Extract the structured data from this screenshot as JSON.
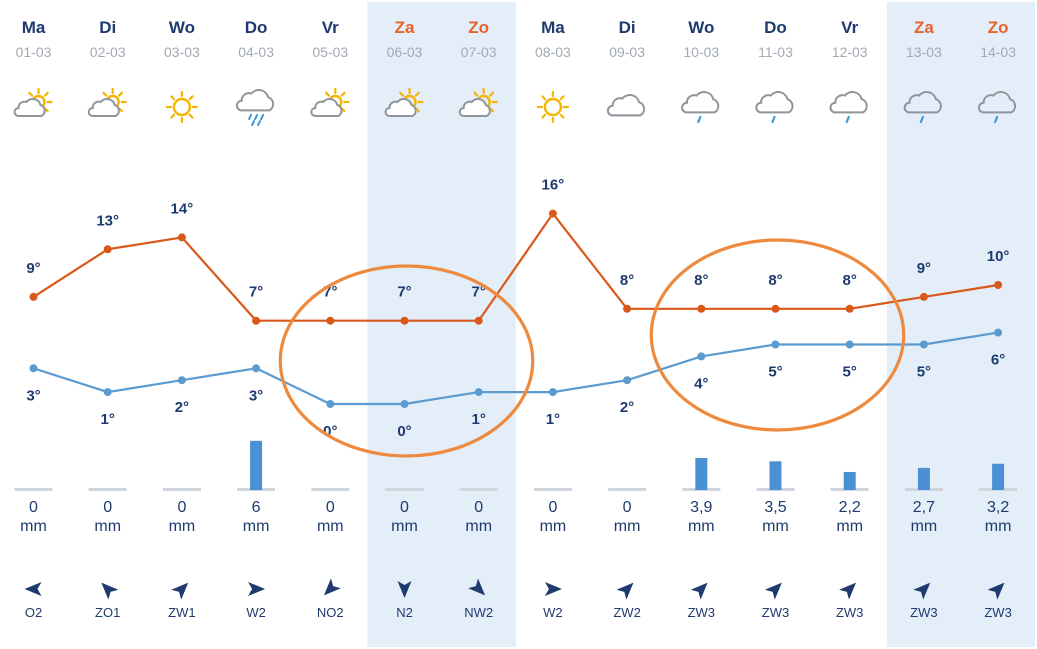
{
  "colors": {
    "weekday": "#1f3a6e",
    "weekend": "#e8622a",
    "weekend_band": "#e3eef9",
    "max_line": "#d9581a",
    "min_line": "#5b9bd0",
    "precip_bar": "#4a90d2",
    "precip_base": "#cfd5dc",
    "annotation": "#ee8a3e",
    "sun": "#f5b400",
    "cloud": "#8e959c",
    "rain": "#3a9ad9"
  },
  "chart_data": {
    "type": "line",
    "unit_temp": "°",
    "precip_unit": "mm",
    "days": [
      {
        "day": "Ma",
        "date": "01-03",
        "weekend": false,
        "icon": "partly-cloudy-icon",
        "max": 9,
        "min": 3,
        "precip": "0",
        "precip_value": 0,
        "wind_dir": "O",
        "wind": "O2",
        "wind_arrow": "arrow-west-icon"
      },
      {
        "day": "Di",
        "date": "02-03",
        "weekend": false,
        "icon": "partly-cloudy-icon",
        "max": 13,
        "min": 1,
        "precip": "0",
        "precip_value": 0,
        "wind_dir": "ZO",
        "wind": "ZO1",
        "wind_arrow": "arrow-northwest-icon"
      },
      {
        "day": "Wo",
        "date": "03-03",
        "weekend": false,
        "icon": "sun-icon",
        "max": 14,
        "min": 2,
        "precip": "0",
        "precip_value": 0,
        "wind_dir": "ZW",
        "wind": "ZW1",
        "wind_arrow": "arrow-northeast-icon"
      },
      {
        "day": "Do",
        "date": "04-03",
        "weekend": false,
        "icon": "rain-cloud-icon",
        "max": 7,
        "min": 3,
        "precip": "6",
        "precip_value": 6,
        "wind_dir": "W",
        "wind": "W2",
        "wind_arrow": "arrow-east-icon"
      },
      {
        "day": "Vr",
        "date": "05-03",
        "weekend": false,
        "icon": "partly-cloudy-icon",
        "max": 7,
        "min": 0,
        "precip": "0",
        "precip_value": 0,
        "wind_dir": "NO",
        "wind": "NO2",
        "wind_arrow": "arrow-southwest-icon"
      },
      {
        "day": "Za",
        "date": "06-03",
        "weekend": true,
        "icon": "partly-cloudy-icon",
        "max": 7,
        "min": 0,
        "precip": "0",
        "precip_value": 0,
        "wind_dir": "N",
        "wind": "N2",
        "wind_arrow": "arrow-south-icon"
      },
      {
        "day": "Zo",
        "date": "07-03",
        "weekend": true,
        "icon": "partly-cloudy-icon",
        "max": 7,
        "min": 1,
        "precip": "0",
        "precip_value": 0,
        "wind_dir": "NW",
        "wind": "NW2",
        "wind_arrow": "arrow-southeast-icon"
      },
      {
        "day": "Ma",
        "date": "08-03",
        "weekend": false,
        "icon": "sun-icon",
        "max": 16,
        "min": 1,
        "precip": "0",
        "precip_value": 0,
        "wind_dir": "W",
        "wind": "W2",
        "wind_arrow": "arrow-east-icon"
      },
      {
        "day": "Di",
        "date": "09-03",
        "weekend": false,
        "icon": "cloud-icon",
        "max": 8,
        "min": 2,
        "precip": "0",
        "precip_value": 0,
        "wind_dir": "ZW",
        "wind": "ZW2",
        "wind_arrow": "arrow-northeast-icon"
      },
      {
        "day": "Wo",
        "date": "10-03",
        "weekend": false,
        "icon": "drizzle-cloud-icon",
        "max": 8,
        "min": 4,
        "precip": "3,9",
        "precip_value": 3.9,
        "wind_dir": "ZW",
        "wind": "ZW3",
        "wind_arrow": "arrow-northeast-icon"
      },
      {
        "day": "Do",
        "date": "11-03",
        "weekend": false,
        "icon": "drizzle-cloud-icon",
        "max": 8,
        "min": 5,
        "precip": "3,5",
        "precip_value": 3.5,
        "wind_dir": "ZW",
        "wind": "ZW3",
        "wind_arrow": "arrow-northeast-icon"
      },
      {
        "day": "Vr",
        "date": "12-03",
        "weekend": false,
        "icon": "drizzle-cloud-icon",
        "max": 8,
        "min": 5,
        "precip": "2,2",
        "precip_value": 2.2,
        "wind_dir": "ZW",
        "wind": "ZW3",
        "wind_arrow": "arrow-northeast-icon"
      },
      {
        "day": "Za",
        "date": "13-03",
        "weekend": true,
        "icon": "drizzle-cloud-icon",
        "max": 9,
        "min": 5,
        "precip": "2,7",
        "precip_value": 2.7,
        "wind_dir": "ZW",
        "wind": "ZW3",
        "wind_arrow": "arrow-northeast-icon"
      },
      {
        "day": "Zo",
        "date": "14-03",
        "weekend": true,
        "icon": "drizzle-cloud-icon",
        "max": 10,
        "min": 6,
        "precip": "3,2",
        "precip_value": 3.2,
        "wind_dir": "ZW",
        "wind": "ZW3",
        "wind_arrow": "arrow-northeast-icon"
      }
    ],
    "series": [
      {
        "values": [
          9,
          13,
          14,
          7,
          7,
          7,
          7,
          16,
          8,
          8,
          8,
          8,
          9,
          10
        ]
      },
      {
        "values": [
          3,
          1,
          2,
          3,
          0,
          0,
          1,
          1,
          2,
          4,
          5,
          5,
          5,
          6
        ]
      }
    ],
    "annotations": [
      {
        "type": "ellipse",
        "covers_days": [
          "05-03",
          "06-03",
          "07-03"
        ]
      },
      {
        "type": "ellipse",
        "covers_days": [
          "10-03",
          "11-03",
          "12-03"
        ]
      }
    ]
  }
}
